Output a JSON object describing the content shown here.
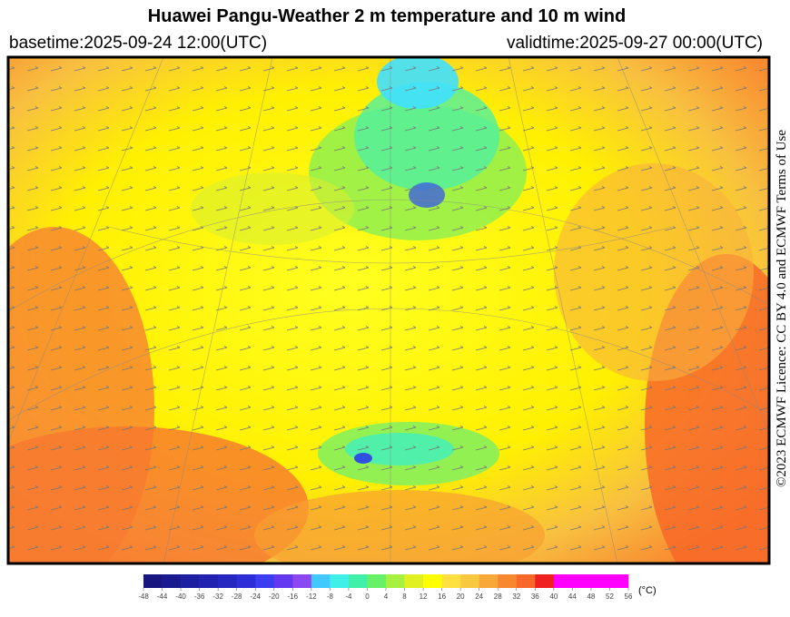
{
  "header": {
    "title": "Huawei Pangu-Weather  2 m temperature and 10 m wind",
    "basetime": "basetime:2025-09-24 12:00(UTC)",
    "validtime": "validtime:2025-09-27 00:00(UTC)"
  },
  "credit": "©2023 ECMWF Licence: CC BY 4.0 and ECMWF Terms of Use",
  "colorbar": {
    "unit": "(°C)",
    "lim": [
      -48,
      56
    ],
    "ticks": [
      -48,
      -44,
      -40,
      -36,
      -32,
      -28,
      -24,
      -20,
      -16,
      -12,
      -8,
      -4,
      0,
      4,
      8,
      12,
      16,
      20,
      24,
      28,
      32,
      36,
      40,
      44,
      48,
      52,
      56
    ],
    "colors": [
      "#16167e",
      "#1a1a90",
      "#1e1ea0",
      "#2222b0",
      "#2626c0",
      "#2e2ed8",
      "#3c3cf0",
      "#6438f0",
      "#8c48f0",
      "#40c8ff",
      "#40f0e8",
      "#40f0a8",
      "#68f068",
      "#a8f040",
      "#e0f020",
      "#ffff00",
      "#ffe040",
      "#f8c840",
      "#f8a838",
      "#f88830",
      "#f86828",
      "#f02020",
      "#ff00ff",
      "#ff00ff",
      "#ff00ff",
      "#ff00ff"
    ]
  }
}
